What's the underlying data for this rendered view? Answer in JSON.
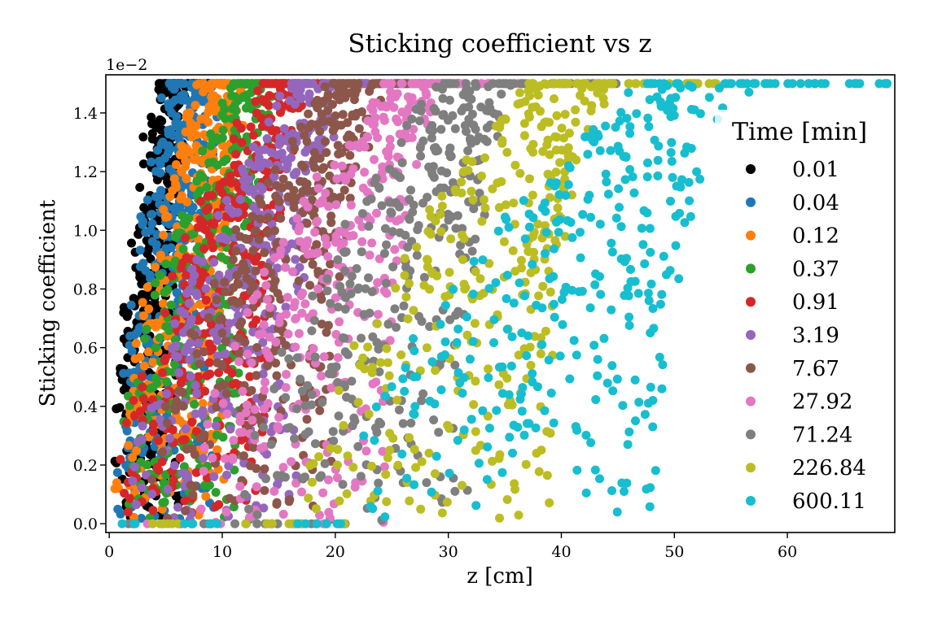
{
  "chart_data": {
    "type": "scatter",
    "title": "Sticking coefficient vs z",
    "xlabel": "z [cm]",
    "ylabel": "Sticking coefficient",
    "y_offset_label": "1e−2",
    "xlim": [
      -0.3,
      69.5
    ],
    "ylim": [
      -0.03,
      1.53
    ],
    "x_ticks": [
      0,
      10,
      20,
      30,
      40,
      50,
      60
    ],
    "x_tick_labels": [
      "0",
      "10",
      "20",
      "30",
      "40",
      "50",
      "60"
    ],
    "y_ticks": [
      0.0,
      0.2,
      0.4,
      0.6,
      0.8,
      1.0,
      1.2,
      1.4
    ],
    "y_tick_labels": [
      "0.0",
      "0.2",
      "0.4",
      "0.6",
      "0.8",
      "1.0",
      "1.2",
      "1.4"
    ],
    "legend_title": "Time [min]",
    "legend_position": "right",
    "y_max_value": 1.5,
    "series": [
      {
        "name": "0.01",
        "color": "#000000",
        "z_front_at_zero": 0.5,
        "z_front_at_max": 4.2,
        "z_max_extent": 10.0
      },
      {
        "name": "0.04",
        "color": "#1f77b4",
        "z_front_at_zero": 0.5,
        "z_front_at_max": 5.3,
        "z_max_extent": 15.0
      },
      {
        "name": "0.12",
        "color": "#ff7f0e",
        "z_front_at_zero": 0.5,
        "z_front_at_max": 8.0,
        "z_max_extent": 17.0
      },
      {
        "name": "0.37",
        "color": "#2ca02c",
        "z_front_at_zero": 0.5,
        "z_front_at_max": 11.0,
        "z_max_extent": 20.0
      },
      {
        "name": "0.91",
        "color": "#d62728",
        "z_front_at_zero": 0.5,
        "z_front_at_max": 13.5,
        "z_max_extent": 23.0
      },
      {
        "name": "3.19",
        "color": "#9467bd",
        "z_front_at_zero": 1.0,
        "z_front_at_max": 16.0,
        "z_max_extent": 27.0
      },
      {
        "name": "7.67",
        "color": "#8c564b",
        "z_front_at_zero": 3.0,
        "z_front_at_max": 19.5,
        "z_max_extent": 31.0
      },
      {
        "name": "27.92",
        "color": "#e377c2",
        "z_front_at_zero": 7.0,
        "z_front_at_max": 24.0,
        "z_max_extent": 37.0
      },
      {
        "name": "71.24",
        "color": "#7f7f7f",
        "z_front_at_zero": 12.0,
        "z_front_at_max": 29.0,
        "z_max_extent": 45.0
      },
      {
        "name": "226.84",
        "color": "#bcbd22",
        "z_front_at_zero": 17.0,
        "z_front_at_max": 37.0,
        "z_max_extent": 55.0
      },
      {
        "name": "600.11",
        "color": "#17becf",
        "z_front_at_zero": 20.0,
        "z_front_at_max": 47.0,
        "z_max_extent": 69.5
      }
    ]
  }
}
